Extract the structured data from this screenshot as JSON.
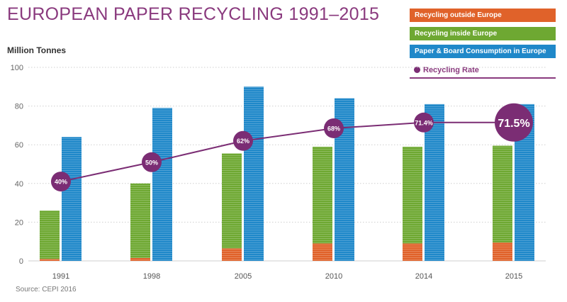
{
  "title": "EUROPEAN PAPER RECYCLING 1991–2015",
  "source": "Source: CEPI 2016",
  "legend": {
    "outside": "Recycling outside Europe",
    "inside": "Recycling inside Europe",
    "consumption": "Paper & Board Consumption in Europe",
    "rate": "Recycling Rate"
  },
  "colors": {
    "outside": "#e0622a",
    "inside": "#6ea832",
    "consumption": "#1f88c9",
    "rate": "#7b2d74",
    "title": "#8a3a7e"
  },
  "chart_data": {
    "type": "bar",
    "title": "EUROPEAN PAPER RECYCLING 1991–2015",
    "ylabel": "Million Tonnes",
    "ylim": [
      0,
      100
    ],
    "yticks": [
      0,
      20,
      40,
      60,
      80,
      100
    ],
    "categories": [
      "1991",
      "1998",
      "2005",
      "2010",
      "2014",
      "2015"
    ],
    "series": [
      {
        "name": "Recycling outside Europe",
        "values": [
          1,
          1.5,
          6.5,
          9,
          9,
          9.5
        ]
      },
      {
        "name": "Recycling inside Europe",
        "values": [
          25,
          38.5,
          49,
          50,
          50,
          50
        ]
      },
      {
        "name": "Paper & Board Consumption in Europe",
        "values": [
          64,
          79,
          90,
          84,
          81,
          81
        ]
      }
    ],
    "rate_series": {
      "name": "Recycling Rate",
      "values": [
        40,
        50,
        62,
        68,
        71.4,
        71.5
      ],
      "labels": [
        "40%",
        "50%",
        "62%",
        "68%",
        "71.4%",
        "71.5%"
      ],
      "plot_values": [
        41,
        51,
        62,
        68.5,
        71.5,
        71.5
      ]
    },
    "grid": true,
    "legend_position": "top-right"
  }
}
